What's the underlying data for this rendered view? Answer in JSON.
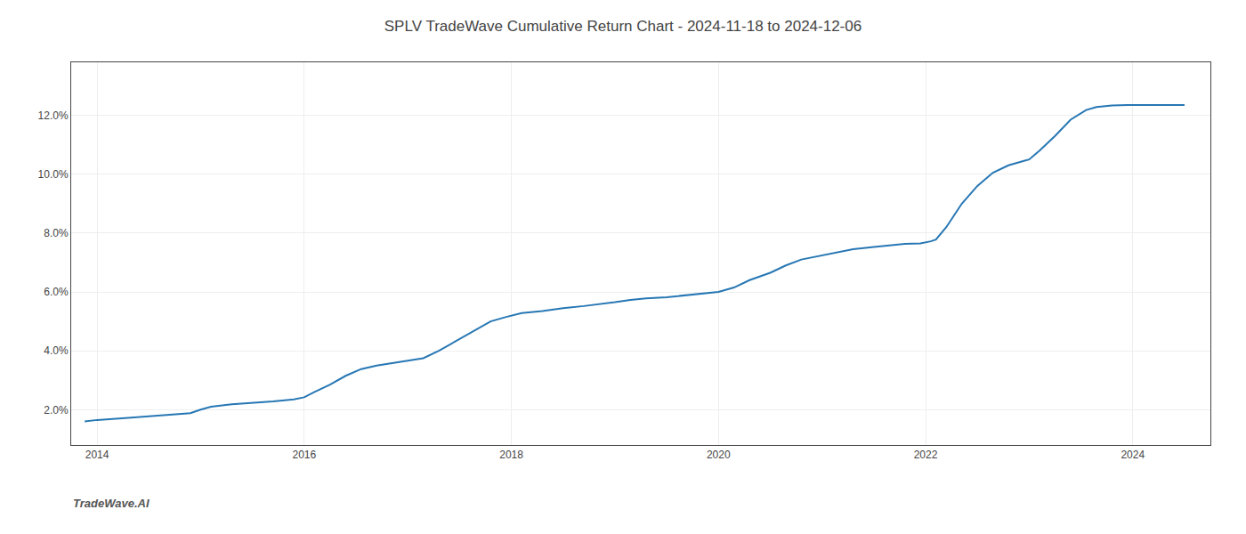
{
  "chart_data": {
    "type": "line",
    "title": "SPLV TradeWave Cumulative Return Chart - 2024-11-18 to 2024-12-06",
    "annotations": [
      "TradeWave.AI"
    ],
    "color": "#2777b4",
    "grid": true,
    "x": [
      2013.88,
      2014.0,
      2014.3,
      2014.6,
      2014.9,
      2015.0,
      2015.1,
      2015.3,
      2015.5,
      2015.7,
      2015.9,
      2016.0,
      2016.1,
      2016.25,
      2016.4,
      2016.55,
      2016.7,
      2016.85,
      2017.0,
      2017.15,
      2017.3,
      2017.5,
      2017.65,
      2017.8,
      2017.95,
      2018.0,
      2018.1,
      2018.3,
      2018.5,
      2018.7,
      2018.85,
      2019.0,
      2019.15,
      2019.3,
      2019.5,
      2019.65,
      2019.8,
      2019.95,
      2020.0,
      2020.15,
      2020.3,
      2020.5,
      2020.65,
      2020.8,
      2020.95,
      2021.0,
      2021.15,
      2021.3,
      2021.5,
      2021.65,
      2021.8,
      2021.95,
      2022.0,
      2022.05,
      2022.1,
      2022.2,
      2022.35,
      2022.5,
      2022.65,
      2022.8,
      2022.95,
      2023.0,
      2023.1,
      2023.25,
      2023.4,
      2023.55,
      2023.65,
      2023.8,
      2023.95,
      2024.0,
      2024.15,
      2024.3,
      2024.5
    ],
    "values": [
      1.6,
      1.65,
      1.72,
      1.8,
      1.88,
      2.0,
      2.1,
      2.18,
      2.22,
      2.28,
      2.35,
      2.42,
      2.6,
      2.85,
      3.15,
      3.38,
      3.5,
      3.58,
      3.65,
      3.75,
      4.0,
      4.4,
      4.7,
      5.0,
      5.15,
      5.2,
      5.28,
      5.35,
      5.45,
      5.52,
      5.58,
      5.65,
      5.73,
      5.78,
      5.82,
      5.87,
      5.93,
      5.98,
      6.0,
      6.15,
      6.4,
      6.65,
      6.9,
      7.1,
      7.2,
      7.25,
      7.35,
      7.45,
      7.53,
      7.58,
      7.63,
      7.65,
      7.68,
      7.72,
      7.78,
      8.2,
      9.0,
      9.6,
      10.05,
      10.3,
      10.45,
      10.5,
      10.8,
      11.3,
      11.85,
      12.18,
      12.28,
      12.33,
      12.35,
      12.35,
      12.35,
      12.35,
      12.35
    ],
    "xlim": [
      2013.75,
      2024.75
    ],
    "ylim": [
      0.8,
      13.8
    ],
    "xticks": [
      2014,
      2016,
      2018,
      2020,
      2022,
      2024
    ],
    "yticks": [
      {
        "value": 2.0,
        "label": "2.0%"
      },
      {
        "value": 4.0,
        "label": "4.0%"
      },
      {
        "value": 6.0,
        "label": "6.0%"
      },
      {
        "value": 8.0,
        "label": "8.0%"
      },
      {
        "value": 10.0,
        "label": "10.0%"
      },
      {
        "value": 12.0,
        "label": "12.0%"
      }
    ]
  }
}
